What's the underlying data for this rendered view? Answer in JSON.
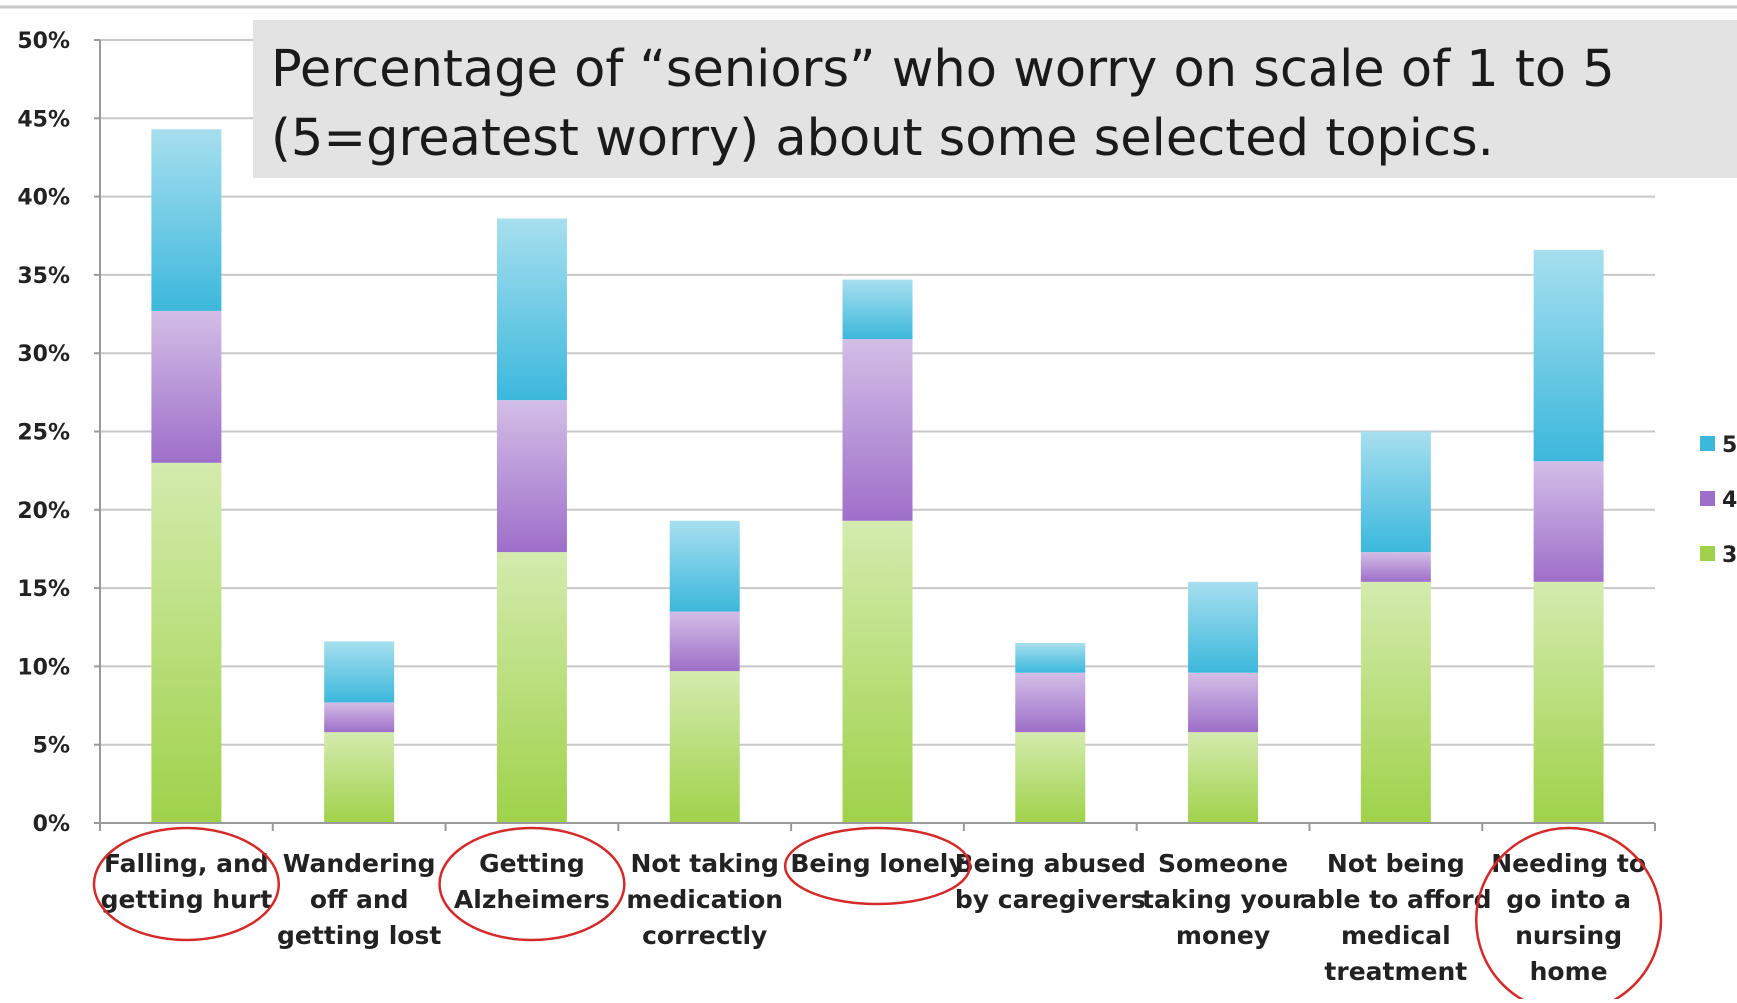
{
  "chart_data": {
    "type": "bar",
    "stacked": true,
    "title_lines": [
      "Percentage of “seniors” who worry on scale of 1 to 5",
      "(5=greatest worry) about some selected topics."
    ],
    "xlabel": "",
    "ylabel": "",
    "ylim": [
      0,
      50
    ],
    "y_ticks": [
      "0%",
      "5%",
      "10%",
      "15%",
      "20%",
      "25%",
      "30%",
      "35%",
      "40%",
      "45%",
      "50%"
    ],
    "grid": true,
    "legend_position": "right",
    "categories": [
      [
        "Falling, and",
        "getting hurt"
      ],
      [
        "Wandering",
        "off and",
        "getting lost"
      ],
      [
        "Getting",
        "Alzheimers"
      ],
      [
        "Not taking",
        "medication",
        "correctly"
      ],
      [
        "Being lonely"
      ],
      [
        "Being abused",
        "by caregivers"
      ],
      [
        "Someone",
        "taking your",
        "money"
      ],
      [
        "Not being",
        "able to afford",
        "medical",
        "treatment"
      ],
      [
        "Needing to",
        "go into a",
        "nursing",
        "home"
      ]
    ],
    "circled_categories": [
      0,
      2,
      4,
      8
    ],
    "series": [
      {
        "name": "3",
        "values": [
          23,
          5.8,
          17.3,
          9.7,
          19.3,
          5.8,
          5.8,
          15.4,
          15.4
        ],
        "color": "#9fd24a"
      },
      {
        "name": "4",
        "values": [
          9.7,
          1.9,
          9.7,
          3.8,
          11.6,
          3.8,
          3.8,
          1.9,
          7.7
        ],
        "color": "#9e6fc9"
      },
      {
        "name": "5",
        "values": [
          11.6,
          3.9,
          11.6,
          5.8,
          3.8,
          1.9,
          5.8,
          7.7,
          13.5
        ],
        "color": "#3cb8dc"
      }
    ],
    "legend_order": [
      "5",
      "4",
      "3"
    ],
    "annotation_color": "#d42a2a"
  }
}
